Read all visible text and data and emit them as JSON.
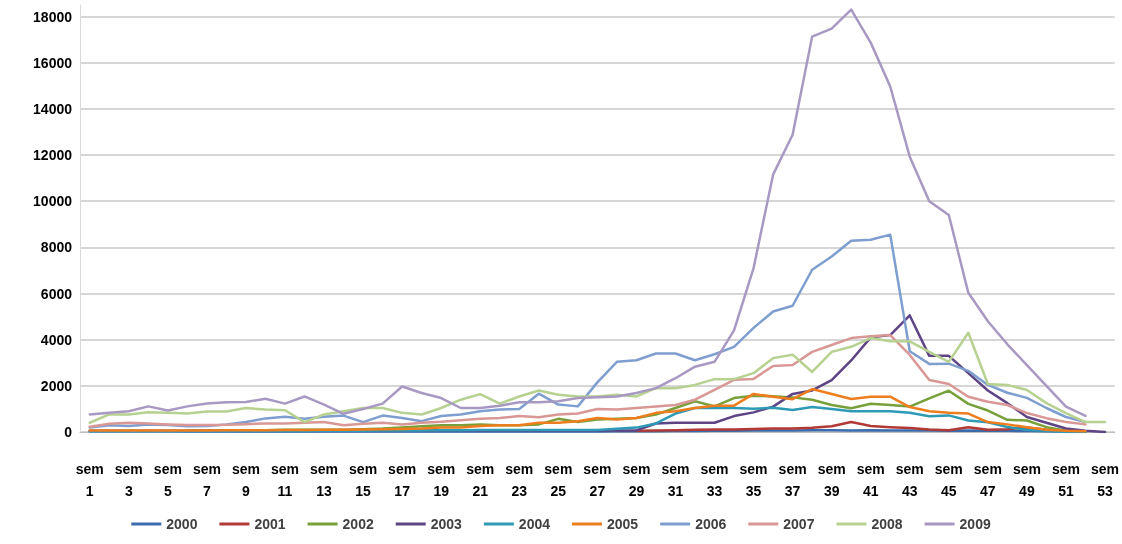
{
  "chart_data": {
    "type": "line",
    "categories": [
      "sem 1",
      null,
      "sem 3",
      null,
      "sem 5",
      null,
      "sem 7",
      null,
      "sem 9",
      null,
      "sem 11",
      null,
      "sem 13",
      null,
      "sem 15",
      null,
      "sem 17",
      null,
      "sem 19",
      null,
      "sem 21",
      null,
      "sem 23",
      null,
      "sem 25",
      null,
      "sem 27",
      null,
      "sem 29",
      null,
      "sem 31",
      null,
      "sem 33",
      null,
      "sem 35",
      null,
      "sem 37",
      null,
      "sem 39",
      null,
      "sem 41",
      null,
      "sem 43",
      null,
      "sem 45",
      null,
      "sem 47",
      null,
      "sem 49",
      null,
      "sem 51",
      null,
      "sem 53"
    ],
    "series": [
      {
        "name": "2000",
        "color": "#3a6bad",
        "values": [
          30,
          30,
          30,
          30,
          30,
          20,
          20,
          20,
          20,
          20,
          20,
          20,
          20,
          20,
          20,
          20,
          20,
          20,
          20,
          20,
          20,
          20,
          20,
          20,
          20,
          20,
          20,
          30,
          30,
          30,
          40,
          40,
          50,
          50,
          60,
          60,
          70,
          80,
          80,
          60,
          80,
          70,
          60,
          60,
          50,
          60,
          50,
          50,
          40,
          30,
          20,
          10,
          null
        ]
      },
      {
        "name": "2001",
        "color": "#b13a36",
        "values": [
          null,
          null,
          null,
          null,
          null,
          null,
          null,
          null,
          null,
          null,
          null,
          null,
          null,
          null,
          null,
          null,
          null,
          null,
          null,
          null,
          null,
          null,
          null,
          null,
          null,
          null,
          null,
          null,
          50,
          60,
          80,
          100,
          110,
          110,
          130,
          150,
          150,
          180,
          250,
          430,
          260,
          210,
          170,
          110,
          80,
          210,
          100,
          120,
          190,
          100,
          50,
          30,
          null
        ]
      },
      {
        "name": "2002",
        "color": "#77a03a",
        "values": [
          null,
          null,
          null,
          null,
          null,
          60,
          60,
          60,
          80,
          80,
          100,
          100,
          100,
          100,
          120,
          150,
          200,
          250,
          290,
          290,
          330,
          290,
          290,
          330,
          570,
          430,
          540,
          570,
          610,
          760,
          1040,
          1330,
          1110,
          1470,
          1570,
          1550,
          1500,
          1400,
          1170,
          1030,
          1220,
          1170,
          1100,
          1460,
          1790,
          1220,
          930,
          530,
          500,
          210,
          50,
          20,
          null
        ]
      },
      {
        "name": "2003",
        "color": "#5e4484",
        "values": [
          50,
          50,
          50,
          50,
          50,
          50,
          50,
          50,
          50,
          50,
          50,
          50,
          50,
          50,
          50,
          50,
          50,
          50,
          70,
          70,
          70,
          70,
          70,
          70,
          70,
          70,
          70,
          70,
          70,
          370,
          400,
          400,
          400,
          690,
          850,
          1100,
          1650,
          1800,
          2250,
          3100,
          4100,
          4200,
          5050,
          3300,
          3300,
          2550,
          1800,
          1250,
          650,
          400,
          150,
          50,
          0
        ]
      },
      {
        "name": "2004",
        "color": "#2e9ab6",
        "values": [
          30,
          30,
          30,
          30,
          30,
          30,
          30,
          30,
          40,
          40,
          40,
          40,
          50,
          50,
          50,
          60,
          60,
          70,
          80,
          80,
          90,
          90,
          90,
          90,
          90,
          90,
          90,
          140,
          190,
          370,
          800,
          1040,
          1040,
          1040,
          1010,
          1050,
          950,
          1080,
          1000,
          900,
          900,
          900,
          830,
          680,
          720,
          500,
          420,
          220,
          100,
          50,
          0,
          0,
          null
        ]
      },
      {
        "name": "2005",
        "color": "#ee7d1e",
        "values": [
          60,
          60,
          60,
          70,
          70,
          70,
          70,
          80,
          80,
          80,
          90,
          90,
          100,
          100,
          110,
          120,
          130,
          150,
          190,
          190,
          260,
          290,
          290,
          400,
          400,
          470,
          610,
          540,
          610,
          830,
          900,
          1040,
          1140,
          1140,
          1650,
          1530,
          1420,
          1860,
          1650,
          1430,
          1530,
          1530,
          1080,
          900,
          830,
          800,
          430,
          330,
          210,
          100,
          50,
          30,
          null
        ]
      },
      {
        "name": "2006",
        "color": "#7f9ed0",
        "values": [
          190,
          290,
          260,
          330,
          300,
          250,
          260,
          330,
          430,
          590,
          660,
          570,
          660,
          710,
          430,
          710,
          610,
          470,
          690,
          760,
          900,
          970,
          1000,
          1660,
          1190,
          1110,
          2150,
          3040,
          3110,
          3400,
          3400,
          3110,
          3370,
          3690,
          4510,
          5220,
          5470,
          7030,
          7600,
          8290,
          8330,
          8550,
          3500,
          2950,
          2960,
          2650,
          2040,
          1700,
          1480,
          1040,
          650,
          430,
          null
        ]
      },
      {
        "name": "2007",
        "color": "#d99795",
        "values": [
          230,
          360,
          400,
          370,
          330,
          300,
          300,
          310,
          340,
          370,
          370,
          400,
          430,
          290,
          360,
          400,
          330,
          400,
          440,
          510,
          570,
          610,
          690,
          640,
          760,
          800,
          1000,
          970,
          1040,
          1110,
          1170,
          1400,
          1830,
          2260,
          2300,
          2860,
          2900,
          3470,
          3770,
          4070,
          4150,
          4200,
          3340,
          2250,
          2080,
          1530,
          1310,
          1170,
          820,
          600,
          430,
          330,
          null
        ]
      },
      {
        "name": "2008",
        "color": "#b6d190",
        "values": [
          400,
          760,
          760,
          860,
          830,
          800,
          890,
          890,
          1040,
          970,
          940,
          430,
          760,
          900,
          1040,
          1040,
          830,
          760,
          1040,
          1400,
          1640,
          1230,
          1540,
          1800,
          1610,
          1540,
          1540,
          1610,
          1540,
          1900,
          1900,
          2040,
          2290,
          2290,
          2550,
          3200,
          3350,
          2600,
          3470,
          3690,
          4070,
          3930,
          3930,
          3470,
          3040,
          4300,
          2080,
          2040,
          1820,
          1250,
          820,
          430,
          430
        ]
      },
      {
        "name": "2009",
        "color": "#a899c2",
        "values": [
          760,
          830,
          900,
          1110,
          930,
          1110,
          1230,
          1290,
          1300,
          1440,
          1230,
          1540,
          1190,
          790,
          1000,
          1230,
          1970,
          1690,
          1470,
          1040,
          1040,
          1140,
          1290,
          1290,
          1330,
          1470,
          1510,
          1540,
          1690,
          1900,
          2330,
          2830,
          3040,
          4400,
          7100,
          11150,
          12880,
          17130,
          17480,
          18300,
          16870,
          14970,
          11930,
          10000,
          9400,
          6030,
          4800,
          3800,
          2900,
          2000,
          1100,
          700,
          null
        ]
      }
    ],
    "ylim": [
      0,
      18500
    ],
    "yticks": [
      0,
      2000,
      4000,
      6000,
      8000,
      10000,
      12000,
      14000,
      16000,
      18000
    ],
    "grid": "y",
    "legend": "bottom",
    "marker": "none",
    "line_style": "solid"
  }
}
